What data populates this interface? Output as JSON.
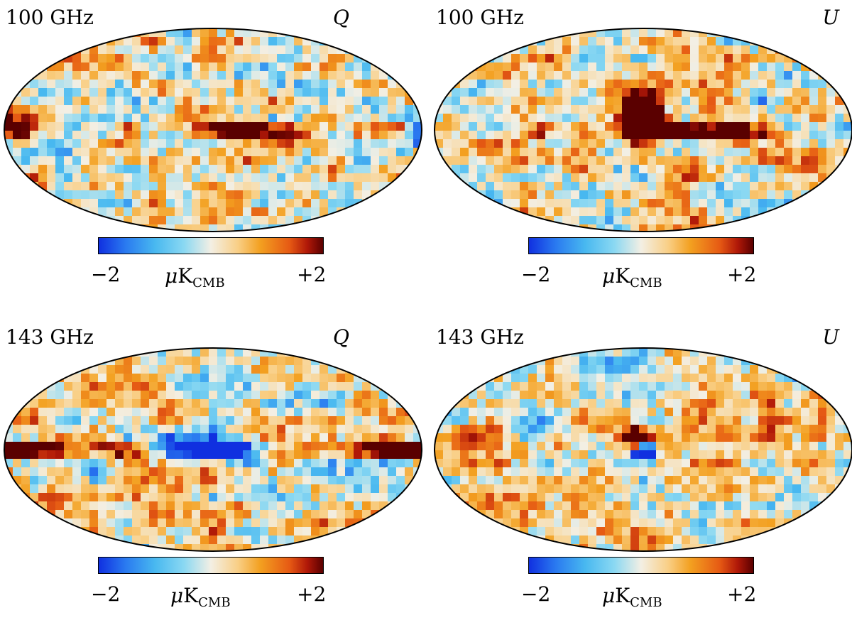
{
  "panels": [
    {
      "freq": "100 GHz",
      "stokes": "Q",
      "features": "q100"
    },
    {
      "freq": "100 GHz",
      "stokes": "U",
      "features": "u100"
    },
    {
      "freq": "143 GHz",
      "stokes": "Q",
      "features": "q143"
    },
    {
      "freq": "143 GHz",
      "stokes": "U",
      "features": "u143"
    }
  ],
  "colorbar": {
    "min_label": "−2",
    "max_label": "+2",
    "unit_mu": "μ",
    "unit_main": "K",
    "unit_sub": "CMB"
  },
  "colors": {
    "scale": [
      "#1030e0",
      "#2a7af0",
      "#48b8f0",
      "#8ad8f2",
      "#f3efe4",
      "#f9cf86",
      "#f3a020",
      "#e65a14",
      "#b01808",
      "#5a0000"
    ]
  }
}
